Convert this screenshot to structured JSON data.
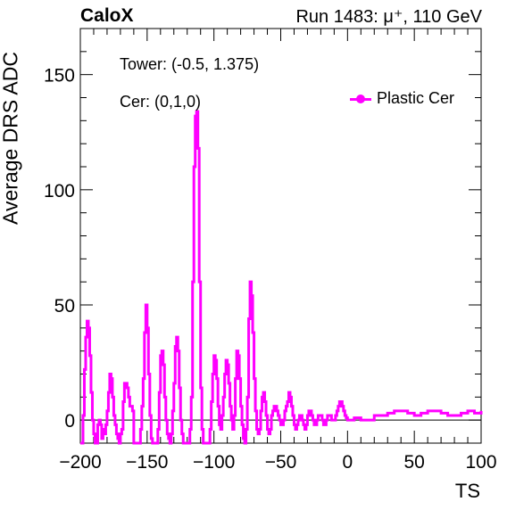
{
  "header": {
    "experiment": "CaloX",
    "run_info": "Run 1483: μ⁺, 110 GeV"
  },
  "info": {
    "tower": "Tower: (-0.5, 1.375)",
    "cer": "Cer: (0,1,0)"
  },
  "chart_data": {
    "type": "line",
    "title": "",
    "xlabel": "TS",
    "ylabel": "Average DRS ADC",
    "xlim": [
      -200,
      100
    ],
    "ylim": [
      -10,
      170
    ],
    "x_ticks": [
      -200,
      -150,
      -100,
      -50,
      0,
      50,
      100
    ],
    "y_ticks": [
      0,
      50,
      100,
      150
    ],
    "grid": false,
    "legend_position": "top-right",
    "series": [
      {
        "name": "Plastic Cer",
        "color": "#ff00ff",
        "points": [
          [
            -200,
            -10
          ],
          [
            -199,
            -10
          ],
          [
            -198,
            2
          ],
          [
            -197,
            22
          ],
          [
            -196,
            36
          ],
          [
            -195,
            43
          ],
          [
            -194,
            40
          ],
          [
            -193,
            28
          ],
          [
            -192,
            12
          ],
          [
            -191,
            0
          ],
          [
            -190,
            -6
          ],
          [
            -189,
            -10
          ],
          [
            -188,
            -10
          ],
          [
            -187,
            -2
          ],
          [
            -186,
            0
          ],
          [
            -185,
            -2
          ],
          [
            -184,
            -8
          ],
          [
            -183,
            -4
          ],
          [
            -182,
            -6
          ],
          [
            -181,
            -2
          ],
          [
            -180,
            4
          ],
          [
            -179,
            12
          ],
          [
            -178,
            20
          ],
          [
            -177,
            18
          ],
          [
            -176,
            10
          ],
          [
            -175,
            2
          ],
          [
            -174,
            -2
          ],
          [
            -173,
            -6
          ],
          [
            -172,
            -8
          ],
          [
            -171,
            -10
          ],
          [
            -170,
            -6
          ],
          [
            -169,
            -4
          ],
          [
            -168,
            8
          ],
          [
            -167,
            16
          ],
          [
            -166,
            16
          ],
          [
            -165,
            14
          ],
          [
            -164,
            10
          ],
          [
            -163,
            6
          ],
          [
            -162,
            6
          ],
          [
            -161,
            4
          ],
          [
            -160,
            -10
          ],
          [
            -159,
            -10
          ],
          [
            -158,
            -10
          ],
          [
            -157,
            -10
          ],
          [
            -156,
            -10
          ],
          [
            -155,
            -4
          ],
          [
            -154,
            6
          ],
          [
            -153,
            18
          ],
          [
            -152,
            38
          ],
          [
            -151,
            50
          ],
          [
            -150,
            40
          ],
          [
            -149,
            20
          ],
          [
            -148,
            2
          ],
          [
            -147,
            -8
          ],
          [
            -146,
            -10
          ],
          [
            -145,
            -10
          ],
          [
            -144,
            -10
          ],
          [
            -143,
            -10
          ],
          [
            -142,
            -4
          ],
          [
            -141,
            12
          ],
          [
            -140,
            28
          ],
          [
            -139,
            30
          ],
          [
            -138,
            24
          ],
          [
            -137,
            10
          ],
          [
            -136,
            0
          ],
          [
            -135,
            -6
          ],
          [
            -134,
            -8
          ],
          [
            -133,
            -10
          ],
          [
            -132,
            -6
          ],
          [
            -131,
            4
          ],
          [
            -130,
            16
          ],
          [
            -129,
            32
          ],
          [
            -128,
            36
          ],
          [
            -127,
            30
          ],
          [
            -126,
            14
          ],
          [
            -125,
            0
          ],
          [
            -124,
            -6
          ],
          [
            -123,
            -10
          ],
          [
            -122,
            -10
          ],
          [
            -121,
            -10
          ],
          [
            -120,
            -10
          ],
          [
            -119,
            -10
          ],
          [
            -118,
            -4
          ],
          [
            -117,
            10
          ],
          [
            -116,
            60
          ],
          [
            -115,
            110
          ],
          [
            -114,
            132
          ],
          [
            -113,
            134
          ],
          [
            -112,
            118
          ],
          [
            -111,
            60
          ],
          [
            -110,
            14
          ],
          [
            -109,
            -4
          ],
          [
            -108,
            -10
          ],
          [
            -107,
            -10
          ],
          [
            -106,
            -10
          ],
          [
            -105,
            -10
          ],
          [
            -104,
            -10
          ],
          [
            -103,
            -4
          ],
          [
            -102,
            8
          ],
          [
            -101,
            20
          ],
          [
            -100,
            28
          ],
          [
            -99,
            26
          ],
          [
            -98,
            18
          ],
          [
            -97,
            6
          ],
          [
            -96,
            -2
          ],
          [
            -95,
            -4
          ],
          [
            -94,
            2
          ],
          [
            -93,
            10
          ],
          [
            -92,
            20
          ],
          [
            -91,
            26
          ],
          [
            -90,
            24
          ],
          [
            -89,
            16
          ],
          [
            -88,
            6
          ],
          [
            -87,
            0
          ],
          [
            -86,
            -4
          ],
          [
            -85,
            2
          ],
          [
            -84,
            18
          ],
          [
            -83,
            30
          ],
          [
            -82,
            28
          ],
          [
            -81,
            18
          ],
          [
            -80,
            6
          ],
          [
            -79,
            -2
          ],
          [
            -78,
            -8
          ],
          [
            -77,
            -10
          ],
          [
            -76,
            -4
          ],
          [
            -75,
            10
          ],
          [
            -74,
            44
          ],
          [
            -73,
            60
          ],
          [
            -72,
            54
          ],
          [
            -71,
            38
          ],
          [
            -70,
            18
          ],
          [
            -69,
            4
          ],
          [
            -68,
            -4
          ],
          [
            -67,
            -6
          ],
          [
            -66,
            -4
          ],
          [
            -65,
            4
          ],
          [
            -64,
            10
          ],
          [
            -63,
            12
          ],
          [
            -62,
            8
          ],
          [
            -61,
            2
          ],
          [
            -60,
            -4
          ],
          [
            -59,
            -6
          ],
          [
            -58,
            -4
          ],
          [
            -57,
            2
          ],
          [
            -56,
            4
          ],
          [
            -55,
            6
          ],
          [
            -54,
            6
          ],
          [
            -53,
            4
          ],
          [
            -52,
            2
          ],
          [
            -51,
            0
          ],
          [
            -50,
            -2
          ],
          [
            -49,
            -2
          ],
          [
            -48,
            0
          ],
          [
            -47,
            4
          ],
          [
            -46,
            6
          ],
          [
            -45,
            8
          ],
          [
            -44,
            12
          ],
          [
            -43,
            10
          ],
          [
            -42,
            6
          ],
          [
            -41,
            2
          ],
          [
            -40,
            -2
          ],
          [
            -39,
            -4
          ],
          [
            -38,
            -2
          ],
          [
            -37,
            0
          ],
          [
            -36,
            2
          ],
          [
            -35,
            2
          ],
          [
            -34,
            0
          ],
          [
            -33,
            -2
          ],
          [
            -32,
            -4
          ],
          [
            -31,
            -2
          ],
          [
            -30,
            2
          ],
          [
            -29,
            4
          ],
          [
            -28,
            4
          ],
          [
            -27,
            2
          ],
          [
            -26,
            0
          ],
          [
            -25,
            -2
          ],
          [
            -24,
            -2
          ],
          [
            -23,
            0
          ],
          [
            -22,
            2
          ],
          [
            -21,
            2
          ],
          [
            -20,
            2
          ],
          [
            -19,
            0
          ],
          [
            -18,
            -2
          ],
          [
            -17,
            -2
          ],
          [
            -16,
            0
          ],
          [
            -15,
            2
          ],
          [
            -14,
            2
          ],
          [
            -13,
            2
          ],
          [
            -12,
            0
          ],
          [
            -11,
            0
          ],
          [
            -10,
            0
          ],
          [
            -9,
            2
          ],
          [
            -8,
            4
          ],
          [
            -7,
            6
          ],
          [
            -6,
            8
          ],
          [
            -5,
            8
          ],
          [
            -4,
            6
          ],
          [
            -3,
            4
          ],
          [
            -2,
            2
          ],
          [
            -1,
            1
          ],
          [
            0,
            0
          ],
          [
            5,
            1
          ],
          [
            10,
            0
          ],
          [
            15,
            0
          ],
          [
            20,
            2
          ],
          [
            25,
            2
          ],
          [
            30,
            3
          ],
          [
            35,
            4
          ],
          [
            40,
            4
          ],
          [
            45,
            3
          ],
          [
            50,
            2
          ],
          [
            55,
            3
          ],
          [
            60,
            4
          ],
          [
            65,
            4
          ],
          [
            70,
            3
          ],
          [
            75,
            2
          ],
          [
            80,
            2
          ],
          [
            85,
            3
          ],
          [
            90,
            4
          ],
          [
            95,
            3
          ],
          [
            100,
            4
          ]
        ]
      }
    ]
  }
}
